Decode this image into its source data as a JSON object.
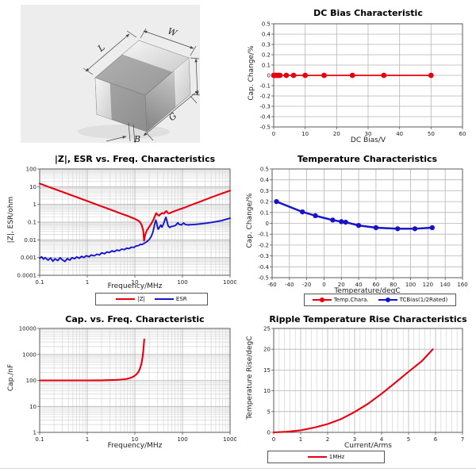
{
  "colors": {
    "red": "#e8000f",
    "blue": "#1414cc",
    "grid_major": "#b5b5b5",
    "grid_minor": "#d6d6d6",
    "frame": "#5a5a5a",
    "tick_text": "#222222"
  },
  "diagram": {
    "labels": {
      "L": "L",
      "W": "W",
      "T": "T",
      "G": "G",
      "B": "B"
    }
  },
  "chart_data": [
    {
      "type": "line",
      "title": "DC Bias Characteristic",
      "xlabel": "DC Bias/V",
      "ylabel": "Cap. Change/%",
      "x_axis": {
        "type": "linear",
        "min": 0,
        "max": 60,
        "major": 10,
        "ticks": [
          "0",
          "10",
          "20",
          "30",
          "40",
          "50",
          "60"
        ]
      },
      "y_axis": {
        "type": "linear",
        "min": -0.5,
        "max": 0.5,
        "major": 0.1,
        "ticks": [
          "0.5",
          "0.4",
          "0.3",
          "0.2",
          "0.1",
          "0",
          "-0.1",
          "-0.2",
          "-0.3",
          "-0.4",
          "-0.5"
        ]
      },
      "legend_visible": false,
      "series": [
        {
          "name": "",
          "color": "#e8000f",
          "width": 1.8,
          "marker": true,
          "radius": 3.4,
          "points": [
            [
              0,
              0
            ],
            [
              0.5,
              0
            ],
            [
              1,
              0
            ],
            [
              1.5,
              0
            ],
            [
              2,
              0
            ],
            [
              4,
              0
            ],
            [
              6.3,
              0
            ],
            [
              10,
              0
            ],
            [
              16,
              0
            ],
            [
              25,
              0
            ],
            [
              35,
              0
            ],
            [
              50,
              0
            ]
          ]
        }
      ]
    },
    {
      "type": "line",
      "title": "|Z|, ESR vs. Freq. Characteristics",
      "xlabel": "Frequency/MHz",
      "ylabel": "|Z|, ESR/ohm",
      "x_axis": {
        "type": "log",
        "min": 0.1,
        "max": 1000,
        "ticks": [
          "0.1",
          "1",
          "10",
          "100",
          "1000"
        ]
      },
      "y_axis": {
        "type": "log",
        "min": 0.0001,
        "max": 100,
        "ticks": [
          "100",
          "10",
          "1",
          "0.1",
          "0.01",
          "0.001",
          "0.0001"
        ]
      },
      "legend_visible": true,
      "series": [
        {
          "name": "|Z|",
          "color": "#e8000f",
          "width": 2.1,
          "marker": false,
          "points": [
            [
              0.1,
              15
            ],
            [
              0.15,
              10
            ],
            [
              0.2,
              7.6
            ],
            [
              0.3,
              5.1
            ],
            [
              0.5,
              3.1
            ],
            [
              0.7,
              2.2
            ],
            [
              1,
              1.55
            ],
            [
              1.5,
              1.03
            ],
            [
              2,
              0.78
            ],
            [
              3,
              0.52
            ],
            [
              5,
              0.31
            ],
            [
              7,
              0.225
            ],
            [
              10,
              0.152
            ],
            [
              12,
              0.118
            ],
            [
              13,
              0.095
            ],
            [
              14,
              0.065
            ],
            [
              15,
              0.032
            ],
            [
              15.6,
              0.009
            ],
            [
              16,
              0.013
            ],
            [
              17,
              0.025
            ],
            [
              18,
              0.035
            ],
            [
              20,
              0.055
            ],
            [
              22,
              0.08
            ],
            [
              24,
              0.12
            ],
            [
              26,
              0.2
            ],
            [
              28,
              0.32
            ],
            [
              30,
              0.27
            ],
            [
              32,
              0.23
            ],
            [
              35,
              0.29
            ],
            [
              38,
              0.33
            ],
            [
              41,
              0.3
            ],
            [
              44,
              0.4
            ],
            [
              46,
              0.42
            ],
            [
              49,
              0.33
            ],
            [
              53,
              0.31
            ],
            [
              58,
              0.35
            ],
            [
              65,
              0.4
            ],
            [
              75,
              0.46
            ],
            [
              90,
              0.55
            ],
            [
              110,
              0.65
            ],
            [
              140,
              0.85
            ],
            [
              180,
              1.1
            ],
            [
              230,
              1.4
            ],
            [
              300,
              1.85
            ],
            [
              400,
              2.5
            ],
            [
              550,
              3.4
            ],
            [
              700,
              4.3
            ],
            [
              850,
              5.2
            ],
            [
              1000,
              6.0
            ]
          ]
        },
        {
          "name": "ESR",
          "color": "#1414cc",
          "width": 1.9,
          "marker": false,
          "points": [
            [
              0.1,
              0.00092
            ],
            [
              0.11,
              0.0011
            ],
            [
              0.12,
              0.00082
            ],
            [
              0.13,
              0.001
            ],
            [
              0.15,
              0.00072
            ],
            [
              0.17,
              0.00095
            ],
            [
              0.19,
              0.00062
            ],
            [
              0.21,
              0.00085
            ],
            [
              0.24,
              0.00068
            ],
            [
              0.27,
              0.00098
            ],
            [
              0.3,
              0.00075
            ],
            [
              0.34,
              0.0006
            ],
            [
              0.38,
              0.00088
            ],
            [
              0.43,
              0.00072
            ],
            [
              0.48,
              0.001
            ],
            [
              0.54,
              0.00085
            ],
            [
              0.6,
              0.00108
            ],
            [
              0.68,
              0.00092
            ],
            [
              0.76,
              0.00118
            ],
            [
              0.85,
              0.001
            ],
            [
              0.95,
              0.00128
            ],
            [
              1.1,
              0.00112
            ],
            [
              1.2,
              0.0014
            ],
            [
              1.4,
              0.00125
            ],
            [
              1.6,
              0.00155
            ],
            [
              1.8,
              0.0014
            ],
            [
              2.0,
              0.00185
            ],
            [
              2.3,
              0.00165
            ],
            [
              2.6,
              0.0021
            ],
            [
              2.9,
              0.0019
            ],
            [
              3.3,
              0.0024
            ],
            [
              3.7,
              0.00215
            ],
            [
              4.2,
              0.00265
            ],
            [
              4.7,
              0.00245
            ],
            [
              5.3,
              0.003
            ],
            [
              6.0,
              0.0028
            ],
            [
              6.7,
              0.0034
            ],
            [
              7.5,
              0.0032
            ],
            [
              8.5,
              0.0039
            ],
            [
              9.5,
              0.0037
            ],
            [
              10.5,
              0.0045
            ],
            [
              12,
              0.0048
            ],
            [
              13,
              0.0056
            ],
            [
              14,
              0.0054
            ],
            [
              15,
              0.006
            ],
            [
              16,
              0.0065
            ],
            [
              18,
              0.008
            ],
            [
              20,
              0.0105
            ],
            [
              22,
              0.015
            ],
            [
              24,
              0.028
            ],
            [
              26,
              0.075
            ],
            [
              27.5,
              0.13
            ],
            [
              29,
              0.085
            ],
            [
              30,
              0.048
            ],
            [
              31,
              0.04
            ],
            [
              33,
              0.052
            ],
            [
              35,
              0.068
            ],
            [
              37,
              0.052
            ],
            [
              40,
              0.08
            ],
            [
              43,
              0.14
            ],
            [
              45,
              0.19
            ],
            [
              47,
              0.12
            ],
            [
              50,
              0.062
            ],
            [
              54,
              0.05
            ],
            [
              58,
              0.056
            ],
            [
              65,
              0.06
            ],
            [
              72,
              0.066
            ],
            [
              80,
              0.092
            ],
            [
              85,
              0.075
            ],
            [
              95,
              0.07
            ],
            [
              105,
              0.088
            ],
            [
              115,
              0.074
            ],
            [
              130,
              0.07
            ],
            [
              150,
              0.072
            ],
            [
              180,
              0.074
            ],
            [
              220,
              0.078
            ],
            [
              270,
              0.083
            ],
            [
              330,
              0.088
            ],
            [
              400,
              0.096
            ],
            [
              500,
              0.106
            ],
            [
              650,
              0.12
            ],
            [
              800,
              0.14
            ],
            [
              1000,
              0.165
            ]
          ]
        }
      ]
    },
    {
      "type": "line",
      "title": "Temperature Characteristics",
      "xlabel": "Temperature/degC",
      "ylabel": "Cap. Change/%",
      "x_axis": {
        "type": "linear",
        "min": -60,
        "max": 160,
        "major": 20,
        "ticks": [
          "-60",
          "-40",
          "-20",
          "0",
          "20",
          "40",
          "60",
          "80",
          "100",
          "120",
          "140",
          "160"
        ]
      },
      "y_axis": {
        "type": "linear",
        "min": -0.5,
        "max": 0.5,
        "major": 0.1,
        "ticks": [
          "0.5",
          "0.4",
          "0.3",
          "0.2",
          "0.1",
          "0",
          "-0.1",
          "-0.2",
          "-0.3",
          "-0.4",
          "-0.5"
        ]
      },
      "legend_visible": true,
      "series": [
        {
          "name": "Temp.Chara.",
          "color": "#e8000f",
          "width": 2.0,
          "marker": true,
          "radius": 3.1,
          "points": [
            [
              -55,
              0.2
            ],
            [
              -25,
              0.105
            ],
            [
              -10,
              0.07
            ],
            [
              10,
              0.03
            ],
            [
              20,
              0.015
            ],
            [
              25,
              0.01
            ],
            [
              40,
              -0.02
            ],
            [
              60,
              -0.04
            ],
            [
              85,
              -0.05
            ],
            [
              105,
              -0.05
            ],
            [
              125,
              -0.04
            ]
          ]
        },
        {
          "name": "TCBias(1/2Rated)",
          "color": "#1414cc",
          "width": 2.4,
          "marker": true,
          "radius": 3.1,
          "points": [
            [
              -55,
              0.2
            ],
            [
              -25,
              0.105
            ],
            [
              -10,
              0.07
            ],
            [
              10,
              0.03
            ],
            [
              20,
              0.015
            ],
            [
              25,
              0.01
            ],
            [
              40,
              -0.02
            ],
            [
              60,
              -0.04
            ],
            [
              85,
              -0.05
            ],
            [
              105,
              -0.05
            ],
            [
              125,
              -0.04
            ]
          ]
        }
      ]
    },
    {
      "type": "line",
      "title": "Cap. vs. Freq. Characteristic",
      "xlabel": "Frequency/MHz",
      "ylabel": "Cap./nF",
      "x_axis": {
        "type": "log",
        "min": 0.1,
        "max": 1000,
        "ticks": [
          "0.1",
          "1",
          "10",
          "100",
          "1000"
        ]
      },
      "y_axis": {
        "type": "log",
        "min": 1,
        "max": 10000,
        "ticks": [
          "10000",
          "1000",
          "100",
          "10",
          "1"
        ]
      },
      "legend_visible": false,
      "series": [
        {
          "name": "",
          "color": "#e8000f",
          "width": 2.1,
          "marker": false,
          "points": [
            [
              0.1,
              100
            ],
            [
              0.2,
              100
            ],
            [
              0.5,
              100
            ],
            [
              1,
              100
            ],
            [
              1.5,
              100.5
            ],
            [
              2,
              101
            ],
            [
              3,
              102.5
            ],
            [
              4,
              104
            ],
            [
              5,
              107
            ],
            [
              6,
              111
            ],
            [
              7,
              116
            ],
            [
              8,
              124
            ],
            [
              9,
              135
            ],
            [
              10,
              152
            ],
            [
              11,
              178
            ],
            [
              12,
              220
            ],
            [
              13,
              310
            ],
            [
              13.5,
              390
            ],
            [
              14,
              530
            ],
            [
              14.5,
              800
            ],
            [
              15,
              1350
            ],
            [
              15.4,
              2400
            ],
            [
              15.7,
              3800
            ]
          ]
        }
      ]
    },
    {
      "type": "line",
      "title": "Ripple Temperature Rise Characteristics",
      "xlabel": "Current/Arms",
      "ylabel": "Temperature Rise/degC",
      "x_axis": {
        "type": "linear",
        "min": 0,
        "max": 7,
        "major": 1,
        "minor": 0.2,
        "ticks": [
          "0",
          "1",
          "2",
          "3",
          "4",
          "5",
          "6",
          "7"
        ]
      },
      "y_axis": {
        "type": "linear",
        "min": 0,
        "max": 25,
        "major": 5,
        "ticks": [
          "25",
          "20",
          "15",
          "10",
          "5",
          "0"
        ]
      },
      "legend_visible": true,
      "series": [
        {
          "name": "1MHz",
          "color": "#e8000f",
          "width": 2.1,
          "marker": false,
          "points": [
            [
              0,
              0
            ],
            [
              0.5,
              0.15
            ],
            [
              1,
              0.5
            ],
            [
              1.5,
              1.15
            ],
            [
              2,
              2.0
            ],
            [
              2.5,
              3.2
            ],
            [
              3,
              4.9
            ],
            [
              3.5,
              6.9
            ],
            [
              4,
              9.3
            ],
            [
              4.5,
              11.9
            ],
            [
              5,
              14.6
            ],
            [
              5.5,
              17.2
            ],
            [
              5.9,
              20.0
            ]
          ]
        }
      ]
    }
  ]
}
